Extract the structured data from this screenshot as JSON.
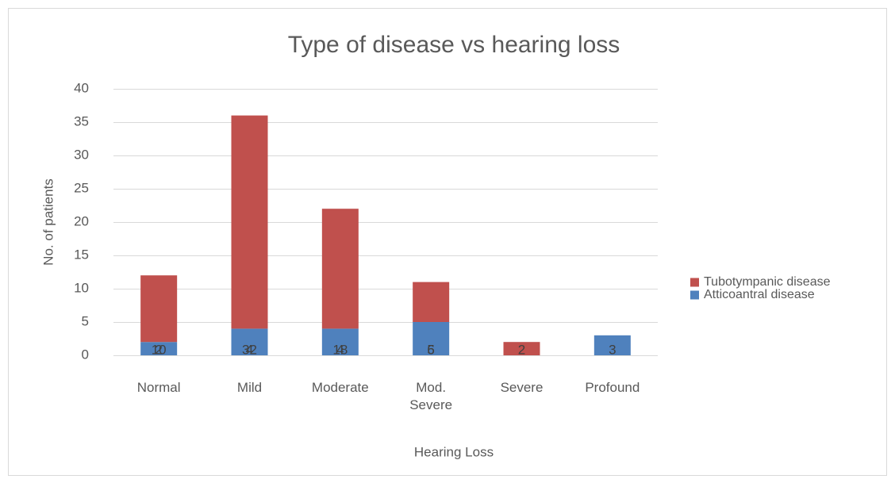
{
  "chart_data": {
    "type": "stacked_bar",
    "title": "Type of disease vs hearing loss",
    "x_label": "Hearing Loss",
    "y_label": "No. of patients",
    "categories": [
      "Normal",
      "Mild",
      "Moderate",
      "Mod.\nSevere",
      "Severe",
      "Profound"
    ],
    "series": [
      {
        "name": "Atticoantral disease",
        "color": "#4f81bd",
        "values": [
          2,
          4,
          4,
          5,
          null,
          3
        ]
      },
      {
        "name": "Tubotympanic disease",
        "color": "#c0504d",
        "values": [
          10,
          32,
          18,
          6,
          2,
          null
        ]
      }
    ],
    "ylim": [
      0,
      40
    ],
    "yticks": [
      0,
      5,
      10,
      15,
      20,
      25,
      30,
      35,
      40
    ],
    "grid": true,
    "legend": "right"
  }
}
